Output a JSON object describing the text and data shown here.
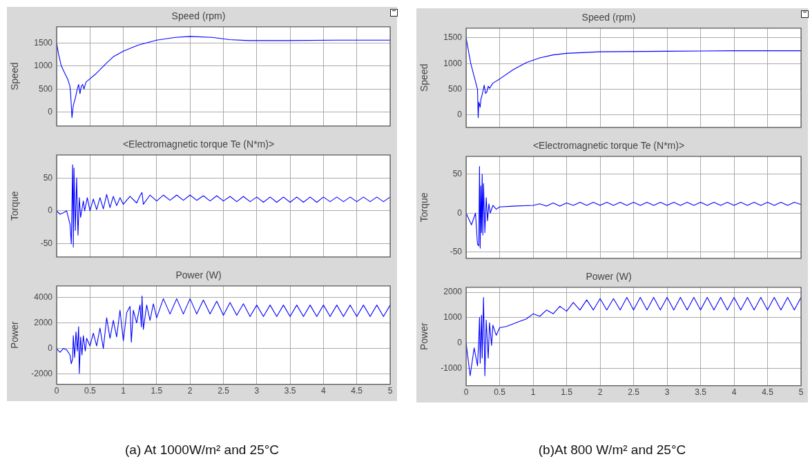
{
  "chart_data": [
    {
      "type": "line",
      "title": "Speed (rpm)",
      "ylabel": "Speed",
      "color": "#0000ff",
      "marker": "none",
      "grid": true,
      "tick_labels": "y",
      "xlim": [
        0,
        5
      ],
      "xticks": [
        0,
        0.5,
        1,
        1.5,
        2,
        2.5,
        3,
        3.5,
        4,
        4.5,
        5
      ],
      "ylim": [
        -300,
        1850
      ],
      "yticks": [
        0,
        500,
        1000,
        1500
      ],
      "x": [
        0,
        0.03,
        0.07,
        0.12,
        0.17,
        0.2,
        0.21,
        0.23,
        0.25,
        0.28,
        0.31,
        0.33,
        0.35,
        0.37,
        0.39,
        0.41,
        0.44,
        0.48,
        0.58,
        0.67,
        0.76,
        0.85,
        1.0,
        1.22,
        1.5,
        1.78,
        2.0,
        2.33,
        2.59,
        2.88,
        3.44,
        4.18,
        4.6,
        5
      ],
      "values": [
        1500,
        1250,
        1000,
        850,
        700,
        560,
        400,
        -120,
        150,
        300,
        500,
        600,
        400,
        560,
        600,
        500,
        650,
        700,
        820,
        950,
        1080,
        1200,
        1320,
        1450,
        1560,
        1620,
        1640,
        1620,
        1570,
        1550,
        1550,
        1560,
        1560,
        1560
      ]
    },
    {
      "type": "line",
      "title": "<Electromagnetic torque Te (N*m)>",
      "ylabel": "Torque",
      "color": "#0000ff",
      "marker": "none",
      "grid": true,
      "tick_labels": "y",
      "xlim": [
        0,
        5
      ],
      "xticks": [
        0,
        0.5,
        1,
        1.5,
        2,
        2.5,
        3,
        3.5,
        4,
        4.5,
        5
      ],
      "ylim": [
        -70,
        85
      ],
      "yticks": [
        -50,
        0,
        50
      ],
      "x": [
        0,
        0.05,
        0.1,
        0.15,
        0.2,
        0.22,
        0.24,
        0.25,
        0.26,
        0.28,
        0.3,
        0.32,
        0.34,
        0.36,
        0.4,
        0.42,
        0.46,
        0.5,
        0.55,
        0.6,
        0.65,
        0.7,
        0.75,
        0.8,
        0.85,
        0.9,
        0.95,
        1.0,
        1.1,
        1.2,
        1.25,
        1.28,
        1.3,
        1.4,
        1.5,
        1.6,
        1.7,
        1.8,
        1.9,
        2.0,
        2.1,
        2.2,
        2.3,
        2.4,
        2.5,
        2.6,
        2.7,
        2.8,
        2.9,
        3.0,
        3.1,
        3.2,
        3.3,
        3.4,
        3.5,
        3.6,
        3.7,
        3.8,
        3.9,
        4.0,
        4.1,
        4.2,
        4.3,
        4.4,
        4.5,
        4.6,
        4.7,
        4.8,
        4.9,
        5.0
      ],
      "values": [
        0,
        -5,
        -3,
        0,
        -20,
        -50,
        70,
        -55,
        65,
        -30,
        50,
        -37,
        20,
        -10,
        15,
        0,
        20,
        0,
        18,
        2,
        20,
        3,
        25,
        5,
        22,
        8,
        20,
        10,
        22,
        12,
        23,
        28,
        10,
        24,
        15,
        24,
        16,
        24,
        16,
        24,
        16,
        23,
        15,
        23,
        15,
        22,
        14,
        22,
        14,
        21,
        13,
        21,
        13,
        21,
        13,
        21,
        13,
        21,
        13,
        21,
        14,
        21,
        14,
        21,
        14,
        21,
        14,
        21,
        14,
        21
      ]
    },
    {
      "type": "line",
      "title": "Power (W)",
      "ylabel": "Power",
      "color": "#0000ff",
      "marker": "none",
      "grid": true,
      "xlim": [
        0,
        5
      ],
      "xticks": [
        0,
        0.5,
        1,
        1.5,
        2,
        2.5,
        3,
        3.5,
        4,
        4.5,
        5
      ],
      "ylim": [
        -2800,
        4900
      ],
      "yticks": [
        -2000,
        0,
        2000,
        4000
      ],
      "annotations": [
        "(a) At 1000W/m² and 25°C"
      ],
      "x": [
        0,
        0.05,
        0.1,
        0.15,
        0.2,
        0.22,
        0.24,
        0.25,
        0.27,
        0.29,
        0.31,
        0.33,
        0.34,
        0.36,
        0.38,
        0.4,
        0.43,
        0.45,
        0.5,
        0.55,
        0.6,
        0.65,
        0.7,
        0.75,
        0.8,
        0.85,
        0.9,
        0.95,
        1.0,
        1.05,
        1.1,
        1.12,
        1.15,
        1.2,
        1.25,
        1.27,
        1.28,
        1.3,
        1.35,
        1.4,
        1.45,
        1.5,
        1.6,
        1.7,
        1.8,
        1.9,
        2.0,
        2.1,
        2.2,
        2.3,
        2.4,
        2.5,
        2.6,
        2.7,
        2.8,
        2.9,
        3.0,
        3.1,
        3.2,
        3.3,
        3.4,
        3.5,
        3.6,
        3.7,
        3.8,
        3.9,
        4.0,
        4.1,
        4.2,
        4.3,
        4.4,
        4.5,
        4.6,
        4.7,
        4.8,
        4.9,
        5.0
      ],
      "values": [
        0,
        -300,
        0,
        -100,
        -500,
        -1200,
        -800,
        1000,
        -700,
        1300,
        -200,
        1700,
        -1950,
        900,
        -500,
        1000,
        -200,
        800,
        200,
        1200,
        200,
        1600,
        0,
        2400,
        800,
        2200,
        900,
        3000,
        600,
        2800,
        3300,
        500,
        3000,
        2000,
        3400,
        1700,
        4100,
        1500,
        3400,
        2200,
        3500,
        2400,
        3900,
        2700,
        3900,
        2700,
        3900,
        2700,
        3800,
        2700,
        3700,
        2600,
        3600,
        2600,
        3500,
        2500,
        3400,
        2500,
        3400,
        2500,
        3400,
        2500,
        3400,
        2500,
        3400,
        2500,
        3400,
        2500,
        3400,
        2500,
        3400,
        2500,
        3400,
        2500,
        3400,
        2500,
        3400
      ]
    },
    {
      "type": "line",
      "title": "Speed (rpm)",
      "ylabel": "Speed",
      "color": "#0000ff",
      "marker": "none",
      "grid": true,
      "tick_labels": "y",
      "xlim": [
        0,
        5
      ],
      "xticks": [
        0,
        0.5,
        1,
        1.5,
        2,
        2.5,
        3,
        3.5,
        4,
        4.5,
        5
      ],
      "ylim": [
        -240,
        1690
      ],
      "yticks": [
        0,
        500,
        1000,
        1500
      ],
      "x": [
        0,
        0.07,
        0.15,
        0.17,
        0.18,
        0.19,
        0.21,
        0.22,
        0.24,
        0.27,
        0.29,
        0.31,
        0.33,
        0.35,
        0.4,
        0.5,
        0.7,
        0.9,
        1.1,
        1.3,
        1.5,
        2,
        3,
        4,
        5
      ],
      "values": [
        1500,
        1000,
        600,
        500,
        -50,
        250,
        150,
        300,
        400,
        580,
        420,
        450,
        560,
        520,
        620,
        700,
        880,
        1020,
        1110,
        1170,
        1200,
        1230,
        1240,
        1250,
        1250
      ]
    },
    {
      "type": "line",
      "title": "<Electromagnetic torque Te (N*m)>",
      "ylabel": "Torque",
      "color": "#0000ff",
      "marker": "none",
      "grid": true,
      "tick_labels": "y",
      "xlim": [
        0,
        5
      ],
      "xticks": [
        0,
        0.5,
        1,
        1.5,
        2,
        2.5,
        3,
        3.5,
        4,
        4.5,
        5
      ],
      "ylim": [
        -58,
        73
      ],
      "yticks": [
        -50,
        0,
        50
      ],
      "x": [
        0,
        0.08,
        0.14,
        0.17,
        0.19,
        0.2,
        0.21,
        0.22,
        0.23,
        0.24,
        0.25,
        0.26,
        0.28,
        0.3,
        0.32,
        0.34,
        0.36,
        0.4,
        0.45,
        0.5,
        0.7,
        1.0,
        1.1,
        1.2,
        1.3,
        1.4,
        1.5,
        1.6,
        1.7,
        1.8,
        1.9,
        2.0,
        2.1,
        2.2,
        2.3,
        2.4,
        2.5,
        2.6,
        2.7,
        2.8,
        2.9,
        3.0,
        3.1,
        3.2,
        3.3,
        3.4,
        3.5,
        3.6,
        3.7,
        3.8,
        3.9,
        4.0,
        4.1,
        4.2,
        4.3,
        4.4,
        4.5,
        4.6,
        4.7,
        4.8,
        4.9,
        5.0
      ],
      "values": [
        0,
        -15,
        0,
        -40,
        -42,
        60,
        -45,
        35,
        -25,
        50,
        -28,
        38,
        -25,
        20,
        -10,
        12,
        0,
        10,
        5,
        8,
        9,
        10,
        12,
        9,
        13,
        9,
        13,
        10,
        14,
        10,
        14,
        10,
        14,
        10,
        14,
        10,
        14,
        10,
        14,
        10,
        14,
        10,
        14,
        10,
        14,
        10,
        14,
        10,
        14,
        10,
        14,
        10,
        14,
        10,
        14,
        10,
        14,
        10,
        14,
        10,
        14,
        11
      ]
    },
    {
      "type": "line",
      "title": "Power (W)",
      "ylabel": "Power",
      "color": "#0000ff",
      "marker": "none",
      "grid": true,
      "xlim": [
        0,
        5
      ],
      "xticks": [
        0,
        0.5,
        1,
        1.5,
        2,
        2.5,
        3,
        3.5,
        4,
        4.5,
        5
      ],
      "ylim": [
        -1690,
        2200
      ],
      "yticks": [
        -1000,
        0,
        1000,
        2000
      ],
      "annotations": [
        "(b)At 800 W/m² and 25°C"
      ],
      "x": [
        0,
        0.06,
        0.12,
        0.17,
        0.19,
        0.2,
        0.21,
        0.23,
        0.24,
        0.26,
        0.28,
        0.3,
        0.33,
        0.35,
        0.38,
        0.4,
        0.45,
        0.5,
        0.6,
        0.7,
        0.8,
        0.9,
        1.0,
        1.1,
        1.2,
        1.3,
        1.4,
        1.5,
        1.6,
        1.7,
        1.8,
        1.9,
        2.0,
        2.1,
        2.2,
        2.3,
        2.4,
        2.5,
        2.6,
        2.7,
        2.8,
        2.9,
        3.0,
        3.1,
        3.2,
        3.3,
        3.4,
        3.5,
        3.6,
        3.7,
        3.8,
        3.9,
        4.0,
        4.1,
        4.2,
        4.3,
        4.4,
        4.5,
        4.6,
        4.7,
        4.8,
        4.9,
        5.0
      ],
      "values": [
        0,
        -1300,
        -200,
        -900,
        200,
        1000,
        -800,
        1100,
        -600,
        1800,
        -1300,
        900,
        -600,
        800,
        -100,
        700,
        300,
        600,
        650,
        750,
        850,
        950,
        1150,
        1050,
        1300,
        1150,
        1450,
        1250,
        1600,
        1300,
        1700,
        1300,
        1750,
        1300,
        1750,
        1300,
        1800,
        1300,
        1800,
        1300,
        1800,
        1300,
        1800,
        1300,
        1800,
        1300,
        1800,
        1300,
        1800,
        1300,
        1800,
        1300,
        1800,
        1300,
        1800,
        1300,
        1800,
        1300,
        1800,
        1300,
        1800,
        1300,
        1800
      ]
    }
  ]
}
